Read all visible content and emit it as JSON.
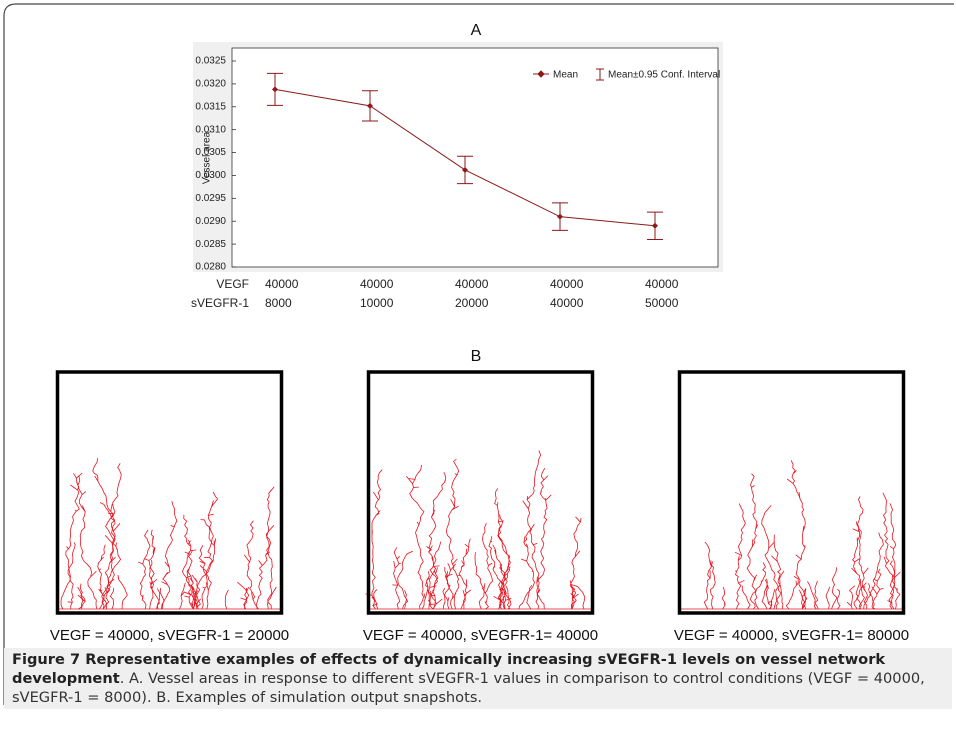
{
  "chart_data": {
    "type": "line",
    "panel_label": "A",
    "ylabel": "Vessel area",
    "row_labels": [
      "VEGF",
      "sVEGFR-1"
    ],
    "categories": [
      [
        "40000",
        "8000"
      ],
      [
        "40000",
        "10000"
      ],
      [
        "40000",
        "20000"
      ],
      [
        "40000",
        "40000"
      ],
      [
        "40000",
        "50000"
      ]
    ],
    "series": [
      {
        "name": "Mean",
        "color": "#8b1a1a",
        "values": [
          0.03188,
          0.03152,
          0.03012,
          0.0291,
          0.0289
        ],
        "errors": [
          0.00035,
          0.00033,
          0.0003,
          0.0003,
          0.0003
        ]
      }
    ],
    "error_label": "Mean±0.95 Conf. Interval",
    "ylim": [
      0.028,
      0.0325
    ],
    "yticks": [
      {
        "value": 0.028,
        "label": "0.0280"
      },
      0.0285,
      {
        "value": 0.029,
        "label": "0.0290"
      },
      0.0295,
      {
        "value": 0.03,
        "label": "0.0300"
      },
      0.0305,
      {
        "value": 0.031,
        "label": "0.0310"
      },
      0.0315,
      {
        "value": 0.032,
        "label": "0.0320"
      },
      0.0325
    ],
    "grid": false
  },
  "panel_b": {
    "label": "B",
    "snapshots": [
      "VEGF = 40000, sVEGFR-1 = 20000",
      "VEGF = 40000, sVEGFR-1= 40000",
      "VEGF = 40000, sVEGFR-1= 80000"
    ]
  },
  "caption": {
    "title": "Figure 7 Representative examples of effects of dynamically increasing sVEGFR-1 levels on vessel network development",
    "text": ". A. Vessel areas in response to different sVEGFR-1 values in comparison to control conditions (VEGF = 40000, sVEGFR-1 = 8000). B. Examples of simulation output snapshots."
  }
}
